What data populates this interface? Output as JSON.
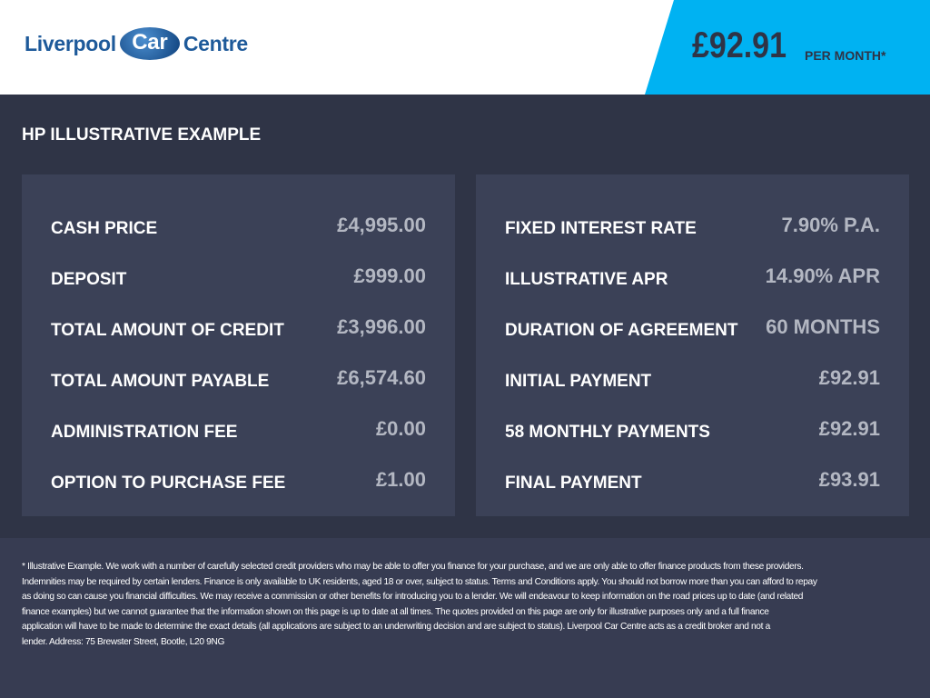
{
  "header": {
    "logo_text_1": "Liverpool",
    "logo_text_2": "Car",
    "logo_text_3": "Centre",
    "monthly_price": "£92.91",
    "per_month": "PER MONTH*",
    "accent": "#00b2f2"
  },
  "title": "HP ILLUSTRATIVE EXAMPLE",
  "left": [
    {
      "label": "CASH PRICE",
      "value": "£4,995.00"
    },
    {
      "label": "DEPOSIT",
      "value": "£999.00"
    },
    {
      "label": "TOTAL AMOUNT OF CREDIT",
      "value": "£3,996.00"
    },
    {
      "label": "TOTAL AMOUNT PAYABLE",
      "value": "£6,574.60"
    },
    {
      "label": "ADMINISTRATION FEE",
      "value": "£0.00"
    },
    {
      "label": "OPTION TO PURCHASE FEE",
      "value": "£1.00"
    }
  ],
  "right": [
    {
      "label": "FIXED INTEREST RATE",
      "value": "7.90% P.A."
    },
    {
      "label": "ILLUSTRATIVE APR",
      "value": "14.90% APR"
    },
    {
      "label": "DURATION OF AGREEMENT",
      "value": "60 MONTHS"
    },
    {
      "label": "INITIAL PAYMENT",
      "value": "£92.91"
    },
    {
      "label": "58 MONTHLY PAYMENTS",
      "value": "£92.91"
    },
    {
      "label": "FINAL PAYMENT",
      "value": "£93.91"
    }
  ],
  "disclaimer": "* Illustrative Example. We work with a number of carefully selected credit providers who may be able to offer you finance for your purchase, and we are only able to offer finance products from these providers.\nIndemnities may be required by certain lenders. Finance is only available to UK residents, aged 18 or over, subject to status. Terms and Conditions apply. You should not borrow more than you can afford to repay\nas doing so can cause you financial difficulties. We may receive a commission or other benefits for introducing you to a lender. We will endeavour to keep information on the road prices up to date (and related\nfinance examples) but we cannot guarantee that the information shown on this page is up to date at all times. The quotes provided on this page are only for illustrative purposes only and a full finance\napplication will have to be made to determine the exact details (all applications are subject to an underwriting decision and are subject to status). Liverpool Car Centre acts as a credit broker and not a\nlender. Address: 75 Brewster Street, Bootle, L20 9NG"
}
